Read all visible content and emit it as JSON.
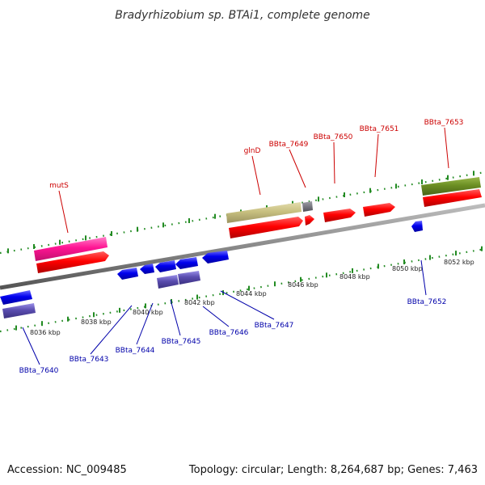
{
  "title": "Bradyrhizobium sp. BTAi1, complete genome",
  "footer": {
    "accession": "Accession: NC_009485",
    "topology": "Topology: circular; Length: 8,264,687 bp; Genes: 7,463"
  },
  "kbp_ticks": [
    "8036 kbp",
    "8038 kbp",
    "8040 kbp",
    "8042 kbp",
    "8044 kbp",
    "8046 kbp",
    "8048 kbp",
    "8050 kbp",
    "8052 kbp"
  ],
  "top_labels": [
    "mutS",
    "glnD",
    "BBta_7649",
    "BBta_7650",
    "BBta_7651",
    "BBta_7653"
  ],
  "bottom_labels": [
    "BBta_7640",
    "BBta_7643",
    "BBta_7644",
    "BBta_7645",
    "BBta_7646",
    "BBta_7647",
    "BBta_7652"
  ],
  "colors": {
    "forward_gene": "#ff0000",
    "reverse_gene": "#0000ee",
    "mutS_feature": "#ff1493",
    "glnD_feature": "#c8c080",
    "bbta7653_feature": "#6b8e23",
    "reverse_feature": "#5a4db0",
    "top_label": "#cc0000",
    "bottom_label": "#0000aa",
    "tick_dots": "#228b22"
  }
}
